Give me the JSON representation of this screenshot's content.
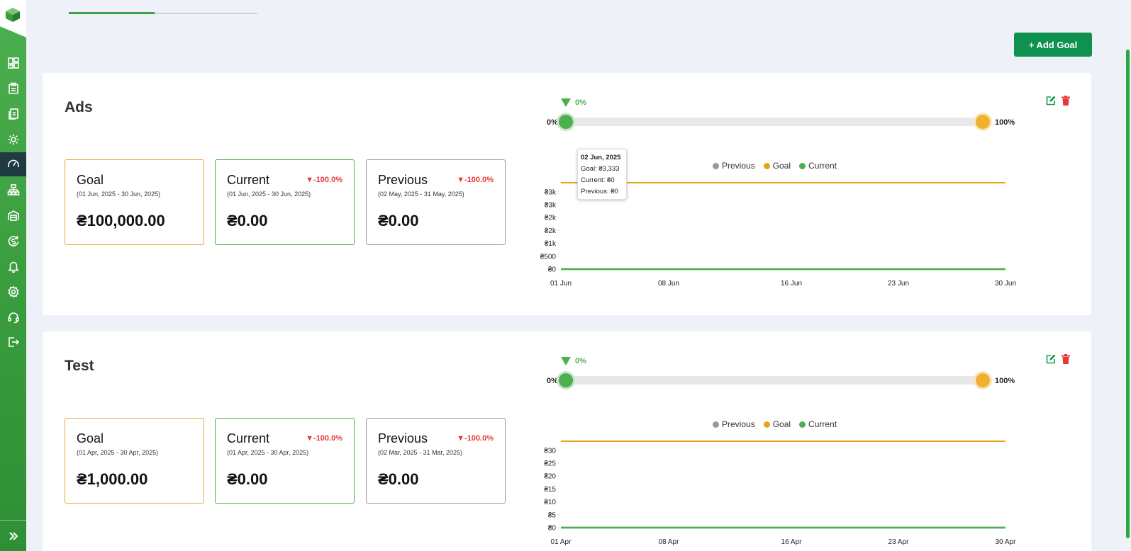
{
  "add_goal_label": "+ Add Goal",
  "goals": [
    {
      "title": "Ads",
      "progress": {
        "value": "0%",
        "start": "0%",
        "end": "100%",
        "fraction": 0.0
      },
      "cards": {
        "goal": {
          "label": "Goal",
          "range": "(01 Jun, 2025 - 30 Jun, 2025)",
          "value": "₴100,000.00"
        },
        "current": {
          "label": "Current",
          "range": "(01 Jun, 2025 - 30 Jun, 2025)",
          "value": "₴0.00",
          "change": "▼-100.0%"
        },
        "previous": {
          "label": "Previous",
          "range": "(02 May, 2025 - 31 May, 2025)",
          "value": "₴0.00",
          "change": "▼-100.0%"
        }
      },
      "legend": [
        "Previous",
        "Goal",
        "Current"
      ],
      "tooltip": {
        "title": "02 Jun, 2025",
        "goal": "Goal: ₴3,333",
        "current": "Current: ₴0",
        "previous": "Previous: ₴0"
      },
      "chart_data": {
        "type": "line",
        "x_ticks": [
          "01 Jun",
          "08 Jun",
          "16 Jun",
          "23 Jun",
          "30 Jun"
        ],
        "y_ticks": [
          "₴0",
          "₴500",
          "₴1k",
          "₴2k",
          "₴2k",
          "₴3k",
          "₴3k"
        ],
        "series": [
          {
            "name": "Goal",
            "color": "#e8a317",
            "values": [
              3333,
              3333
            ]
          },
          {
            "name": "Previous",
            "color": "#999999",
            "values": [
              0,
              0
            ]
          },
          {
            "name": "Current",
            "color": "#4caf50",
            "values": [
              0,
              0
            ]
          }
        ]
      }
    },
    {
      "title": "Test",
      "progress": {
        "value": "0%",
        "start": "0%",
        "end": "100%",
        "fraction": 0.0
      },
      "cards": {
        "goal": {
          "label": "Goal",
          "range": "(01 Apr, 2025 - 30 Apr, 2025)",
          "value": "₴1,000.00"
        },
        "current": {
          "label": "Current",
          "range": "(01 Apr, 2025 - 30 Apr, 2025)",
          "value": "₴0.00",
          "change": "▼-100.0%"
        },
        "previous": {
          "label": "Previous",
          "range": "(02 Mar, 2025 - 31 Mar, 2025)",
          "value": "₴0.00",
          "change": "▼-100.0%"
        }
      },
      "legend": [
        "Previous",
        "Goal",
        "Current"
      ],
      "chart_data": {
        "type": "line",
        "x_ticks": [
          "01 Apr",
          "08 Apr",
          "16 Apr",
          "23 Apr",
          "30 Apr"
        ],
        "y_ticks": [
          "₴0",
          "₴5",
          "₴10",
          "₴15",
          "₴20",
          "₴25",
          "₴30"
        ],
        "series": [
          {
            "name": "Goal",
            "color": "#e8a317",
            "values": [
              33,
              33
            ]
          },
          {
            "name": "Previous",
            "color": "#999999",
            "values": [
              0,
              0
            ]
          },
          {
            "name": "Current",
            "color": "#4caf50",
            "values": [
              0,
              0
            ]
          }
        ]
      }
    }
  ]
}
